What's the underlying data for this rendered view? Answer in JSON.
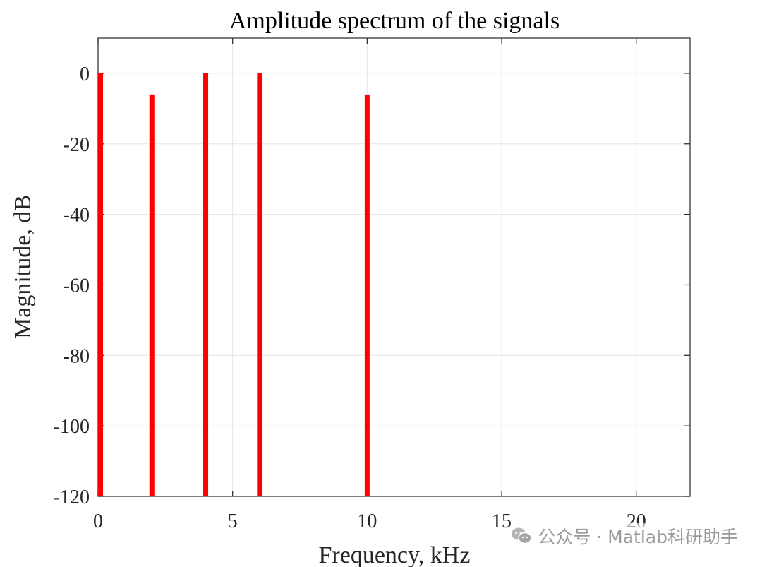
{
  "chart_data": {
    "type": "bar",
    "title": "Amplitude spectrum of the signals",
    "xlabel": "Frequency, kHz",
    "ylabel": "Magnitude, dB",
    "xlim": [
      0,
      22
    ],
    "ylim": [
      -120,
      10
    ],
    "xticks": [
      0,
      5,
      10,
      15,
      20
    ],
    "yticks": [
      0,
      -20,
      -40,
      -60,
      -80,
      -100,
      -120
    ],
    "grid": true,
    "series": [
      {
        "color": "#ff0000",
        "x": [
          0,
          2,
          4,
          6,
          10
        ],
        "y": [
          0,
          -6,
          0,
          0,
          -6
        ]
      }
    ]
  },
  "watermark": {
    "text": "公众号 · Matlab科研助手",
    "icon": "wechat-icon"
  }
}
